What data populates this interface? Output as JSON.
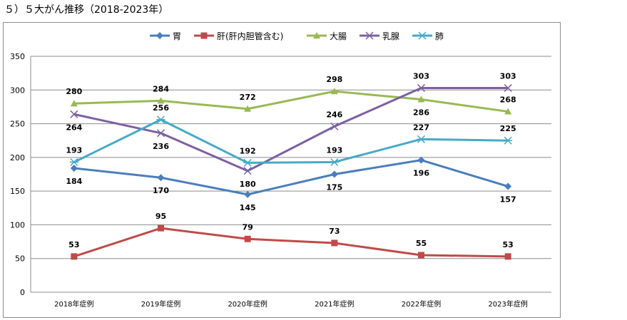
{
  "title": "５）５大がん推移（2018-2023年）",
  "chart_data": {
    "type": "line",
    "categories": [
      "2018年症例",
      "2019年症例",
      "2020年症例",
      "2021年症例",
      "2022年症例",
      "2023年症例"
    ],
    "ylim": [
      0,
      350
    ],
    "yticks": [
      0,
      50,
      100,
      150,
      200,
      250,
      300,
      350
    ],
    "grid": true,
    "legend_position": "top",
    "series": [
      {
        "name": "胃",
        "color": "#4a7ebb",
        "marker": "diamond",
        "values": [
          184,
          170,
          145,
          175,
          196,
          157
        ],
        "label_pos": [
          "below",
          "below",
          "below",
          "below",
          "below",
          "below"
        ]
      },
      {
        "name": "肝(肝内胆管含む)",
        "color": "#be4b48",
        "marker": "square",
        "values": [
          53,
          95,
          79,
          73,
          55,
          53
        ],
        "label_pos": [
          "above",
          "above",
          "above",
          "above",
          "above",
          "above"
        ]
      },
      {
        "name": "大腸",
        "color": "#98b954",
        "marker": "triangle",
        "values": [
          280,
          284,
          272,
          298,
          286,
          268
        ],
        "label_pos": [
          "above",
          "above",
          "above",
          "above",
          "below",
          "above"
        ]
      },
      {
        "name": "乳腺",
        "color": "#7d60a0",
        "marker": "x",
        "values": [
          264,
          236,
          180,
          246,
          303,
          303
        ],
        "label_pos": [
          "below",
          "below",
          "below",
          "above",
          "above",
          "above"
        ]
      },
      {
        "name": "肺",
        "color": "#46aac5",
        "marker": "star",
        "values": [
          193,
          256,
          192,
          193,
          227,
          225
        ],
        "label_pos": [
          "above",
          "above",
          "above",
          "above",
          "above",
          "above"
        ]
      }
    ]
  }
}
